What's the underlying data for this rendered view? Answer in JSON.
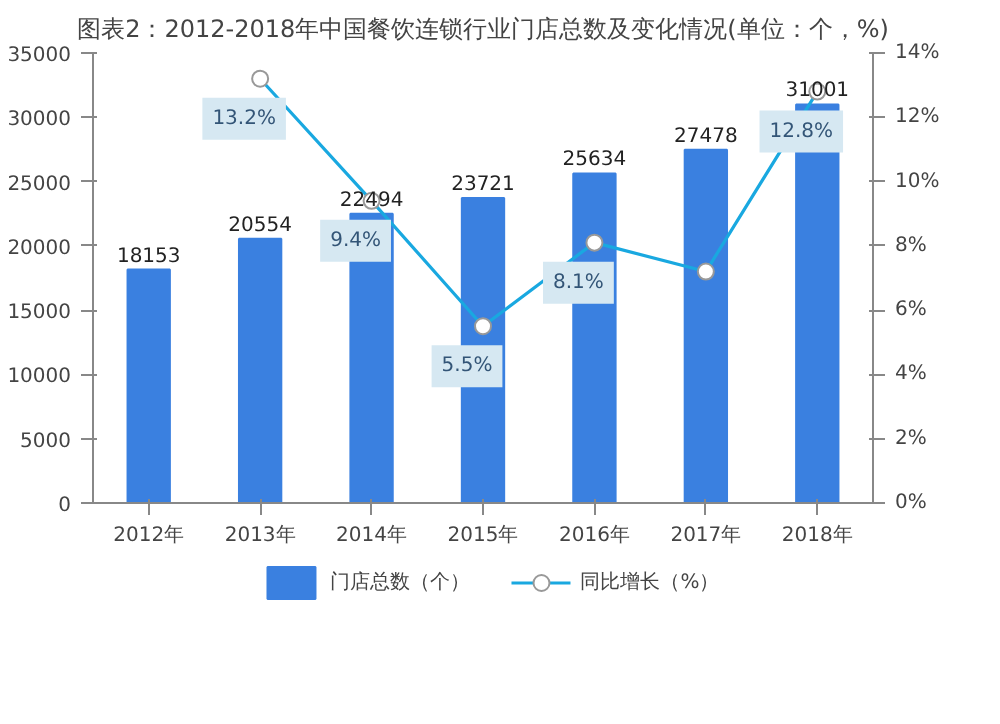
{
  "chart_data": {
    "type": "bar",
    "title": "图表2：2012-2018年中国餐饮连锁行业门店总数及变化情况(单位：个，%)",
    "categories": [
      "2012年",
      "2013年",
      "2014年",
      "2015年",
      "2016年",
      "2017年",
      "2018年"
    ],
    "series": [
      {
        "name": "门店总数（个）",
        "color": "#3a80e0",
        "values": [
          18153,
          20554,
          22494,
          23721,
          25634,
          27478,
          31001
        ],
        "data_labels": true
      },
      {
        "name": "同比增长（%）",
        "type": "line",
        "axis": "y2",
        "color": "#19a8e0",
        "marker": "circle",
        "values": [
          null,
          13.2,
          9.4,
          5.5,
          8.1,
          7.2,
          12.8
        ],
        "value_labels": [
          null,
          "13.2%",
          "9.4%",
          "5.5%",
          "8.1%",
          null,
          "12.8%"
        ]
      }
    ],
    "ylim": [
      0,
      35000
    ],
    "yticks": [
      0,
      5000,
      10000,
      15000,
      20000,
      25000,
      30000,
      35000
    ],
    "y2lim": [
      0,
      14
    ],
    "y2ticks": [
      {
        "value": 0,
        "label": "0%"
      },
      {
        "value": 2,
        "label": "2%"
      },
      {
        "value": 4,
        "label": "4%"
      },
      {
        "value": 6,
        "label": "6%"
      },
      {
        "value": 8,
        "label": "8%"
      },
      {
        "value": 10,
        "label": "10%"
      },
      {
        "value": 12,
        "label": "12%"
      },
      {
        "value": 14,
        "label": "14%"
      }
    ],
    "grid": false,
    "legend": "bottom"
  }
}
